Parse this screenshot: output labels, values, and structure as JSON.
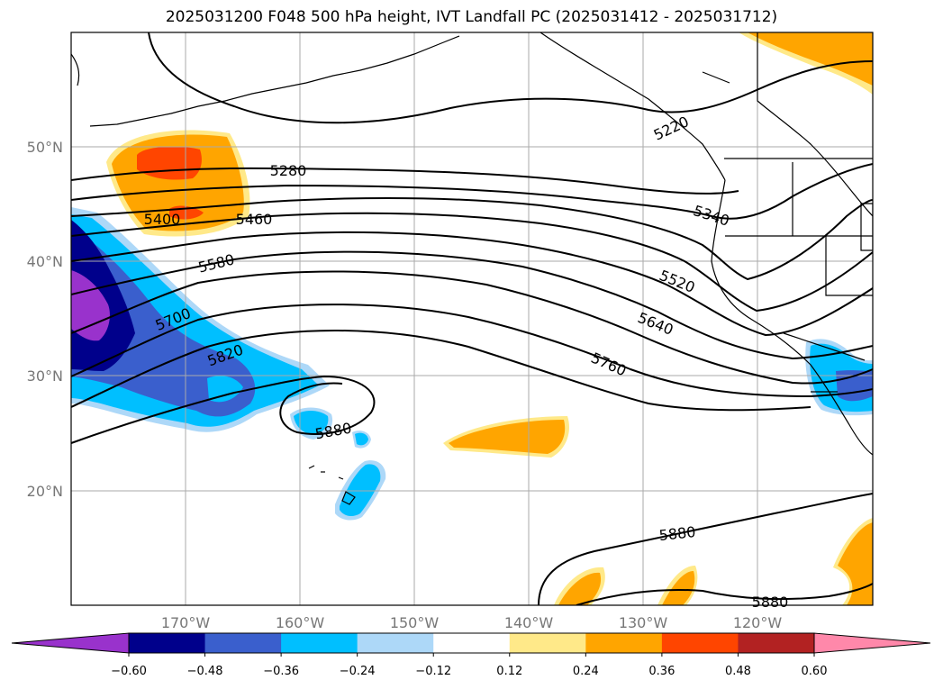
{
  "title": "2025031200 F048 500 hPa height, IVT Landfall PC (2025031412 - 2025031712)",
  "lat_ticks": [
    "50°N",
    "40°N",
    "30°N",
    "20°N"
  ],
  "lon_ticks": [
    "170°W",
    "160°W",
    "150°W",
    "140°W",
    "130°W",
    "120°W"
  ],
  "contour_labels": [
    "5280",
    "5400",
    "5460",
    "5580",
    "5700",
    "5820",
    "5880",
    "5220",
    "5340",
    "5520",
    "5640",
    "5760",
    "5880",
    "5880"
  ],
  "colorbar": {
    "ticks": [
      "−0.60",
      "−0.48",
      "−0.36",
      "−0.24",
      "−0.12",
      "0.12",
      "0.24",
      "0.36",
      "0.48",
      "0.60"
    ],
    "colors": [
      "#9932cc",
      "#00008b",
      "#3a5fcd",
      "#00bfff",
      "#add8f8",
      "#ffffff",
      "#ffe989",
      "#ffa500",
      "#ff4500",
      "#b22222",
      "#ff88aa"
    ]
  }
}
